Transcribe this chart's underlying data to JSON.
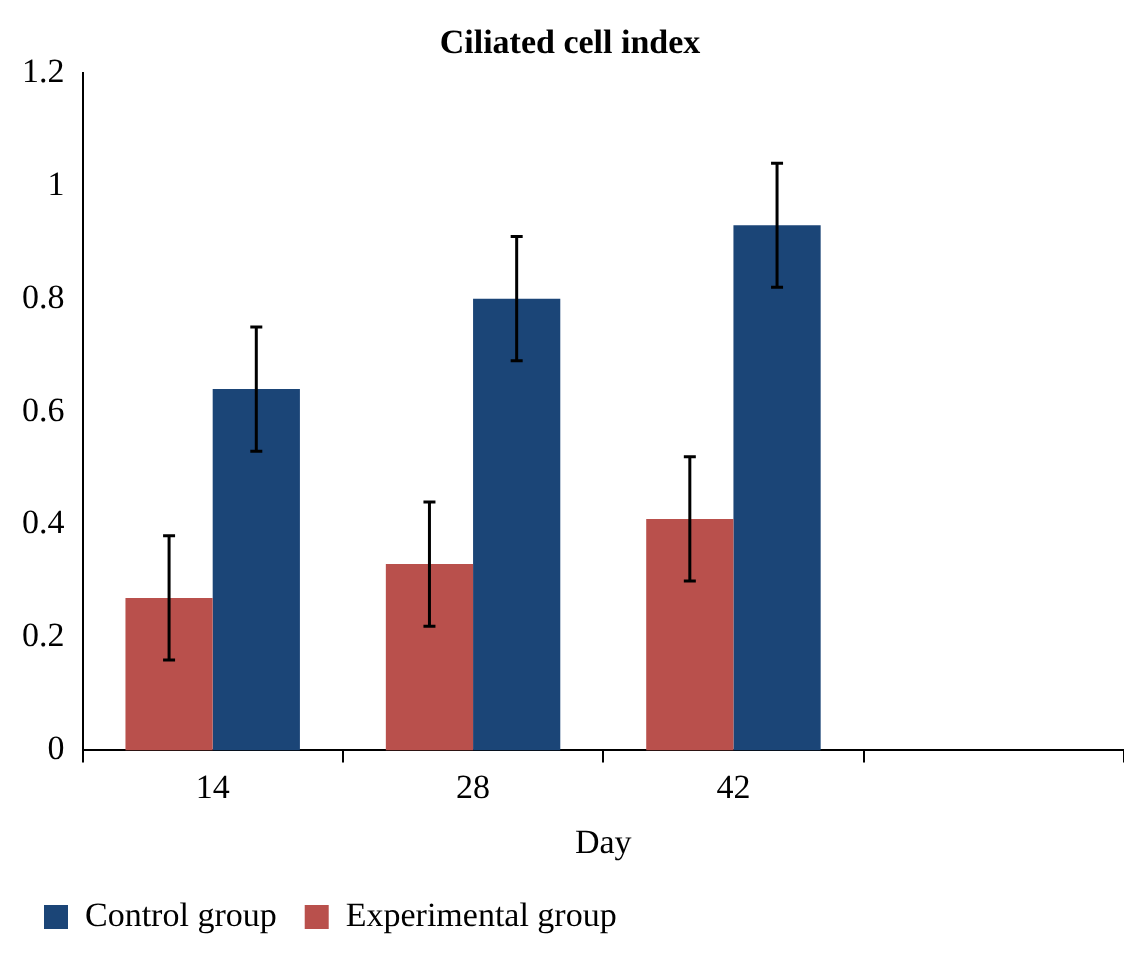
{
  "chart_data": {
    "type": "bar",
    "title": "Ciliated cell index",
    "xlabel": "Day",
    "categories": [
      "14",
      "28",
      "42",
      null
    ],
    "series": [
      {
        "name": "Experimental group",
        "color": "#b9504c",
        "values": [
          0.27,
          0.33,
          0.41,
          null
        ],
        "errors": [
          0.11,
          0.11,
          0.11,
          null
        ]
      },
      {
        "name": "Control group",
        "color": "#1b4577",
        "values": [
          0.64,
          0.8,
          0.93,
          null
        ],
        "errors": [
          0.11,
          0.11,
          0.11,
          null
        ]
      }
    ],
    "ylim": [
      0,
      1.2
    ],
    "yticks": [
      0,
      0.2,
      0.4,
      0.6,
      0.8,
      1,
      1.2
    ],
    "legend": "bottom left"
  }
}
